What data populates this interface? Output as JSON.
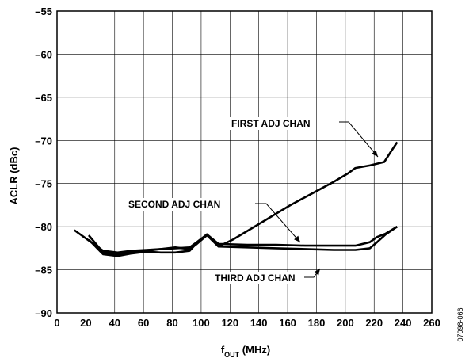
{
  "chart_data": {
    "type": "line",
    "title": "",
    "xlabel_main": "f",
    "xlabel_sub": "OUT",
    "xlabel_unit": " (MHz)",
    "ylabel": "ACLR (dBc)",
    "xlim": [
      0,
      260
    ],
    "ylim": [
      -90,
      -55
    ],
    "xticks": [
      0,
      20,
      40,
      60,
      80,
      100,
      120,
      140,
      160,
      180,
      200,
      220,
      240,
      260
    ],
    "yticks": [
      -55,
      -60,
      -65,
      -70,
      -75,
      -80,
      -85,
      -90
    ],
    "ytick_labels": [
      "–55",
      "–60",
      "–65",
      "–70",
      "–75",
      "–80",
      "–85",
      "–90"
    ],
    "grid": true,
    "series": [
      {
        "name": "FIRST ADJ CHAN",
        "x": [
          22,
          32,
          42,
          52,
          62,
          72,
          82,
          92,
          97,
          104,
          112,
          122,
          132,
          142,
          152,
          162,
          172,
          182,
          192,
          202,
          207,
          217,
          227,
          232,
          236
        ],
        "y": [
          -81.0,
          -83.0,
          -83.2,
          -83.0,
          -82.8,
          -82.6,
          -82.4,
          -82.6,
          -82.0,
          -81.0,
          -82.3,
          -81.5,
          -80.5,
          -79.5,
          -78.5,
          -77.5,
          -76.6,
          -75.7,
          -74.8,
          -73.8,
          -73.2,
          -72.9,
          -72.5,
          -71.2,
          -70.2
        ]
      },
      {
        "name": "SECOND ADJ CHAN",
        "x": [
          12,
          22,
          32,
          42,
          52,
          62,
          72,
          82,
          92,
          97,
          104,
          112,
          132,
          152,
          172,
          192,
          207,
          217,
          222,
          228,
          236
        ],
        "y": [
          -80.4,
          -81.6,
          -82.8,
          -83.0,
          -82.8,
          -82.7,
          -82.6,
          -82.5,
          -82.4,
          -81.8,
          -80.9,
          -82.0,
          -82.1,
          -82.1,
          -82.2,
          -82.2,
          -82.2,
          -81.8,
          -81.2,
          -80.8,
          -80.0
        ]
      },
      {
        "name": "THIRD ADJ CHAN",
        "x": [
          22,
          32,
          42,
          52,
          62,
          72,
          82,
          92,
          97,
          104,
          112,
          132,
          152,
          172,
          192,
          207,
          217,
          222,
          228,
          236
        ],
        "y": [
          -81.5,
          -83.2,
          -83.4,
          -83.1,
          -82.9,
          -83.0,
          -83.0,
          -82.8,
          -81.9,
          -80.9,
          -82.3,
          -82.4,
          -82.5,
          -82.6,
          -82.7,
          -82.7,
          -82.5,
          -81.8,
          -80.9,
          -80.0
        ]
      }
    ],
    "annotations": [
      {
        "text": "FIRST ADJ CHAN",
        "series": "FIRST ADJ CHAN"
      },
      {
        "text": "SECOND ADJ CHAN",
        "series": "SECOND ADJ CHAN"
      },
      {
        "text": "THIRD ADJ CHAN",
        "series": "THIRD ADJ CHAN"
      }
    ],
    "figure_id": "07098-066"
  }
}
